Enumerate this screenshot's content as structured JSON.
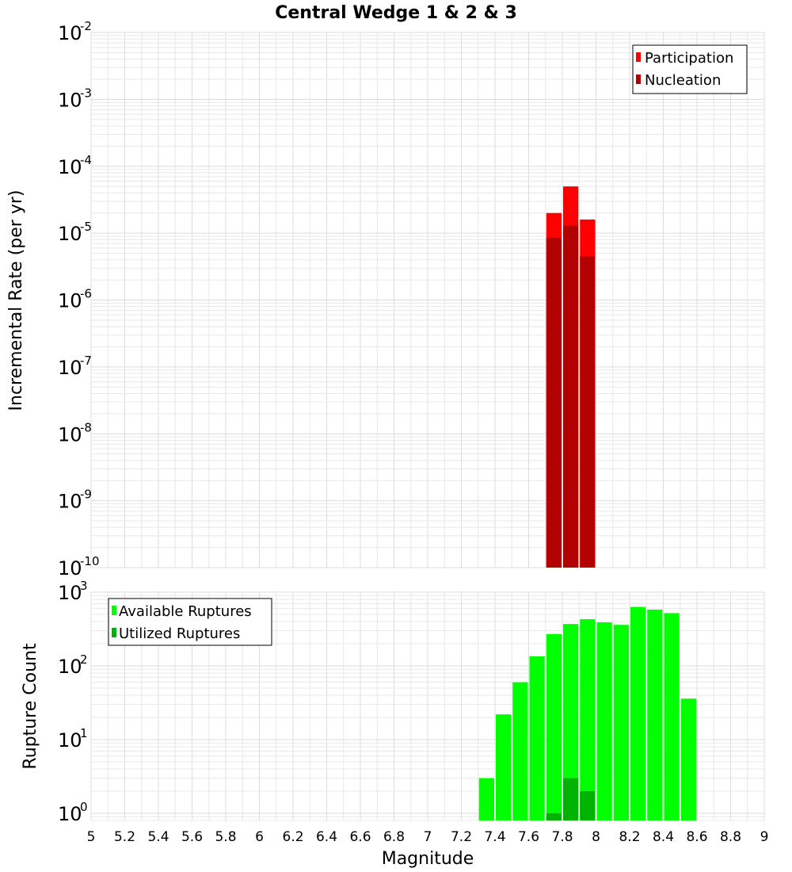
{
  "chart_data": [
    {
      "type": "bar",
      "panel": "top",
      "title": "Central Wedge 1 & 2 & 3",
      "xlabel": "Magnitude",
      "ylabel": "Incremental Rate (per yr)",
      "yscale": "log",
      "ylim": [
        1e-10,
        0.01
      ],
      "xlim": [
        5,
        9
      ],
      "y_tick_base": "10",
      "y_tick_exponents": [
        "-10",
        "-9",
        "-8",
        "-7",
        "-6",
        "-5",
        "-4",
        "-3",
        "-2"
      ],
      "bin_width": 0.1,
      "series": [
        {
          "name": "Participation",
          "color": "#ff0000",
          "x": [
            7.75,
            7.85,
            7.95
          ],
          "values": [
            2e-05,
            5e-05,
            1.6e-05
          ]
        },
        {
          "name": "Nucleation",
          "color": "#b30000",
          "x": [
            7.75,
            7.85,
            7.95
          ],
          "values": [
            8.5e-06,
            1.3e-05,
            4.5e-06
          ]
        }
      ],
      "legend": [
        "Participation",
        "Nucleation"
      ],
      "legend_position": "top-right",
      "grid": true
    },
    {
      "type": "bar",
      "panel": "bottom",
      "xlabel": "Magnitude",
      "ylabel": "Rupture Count",
      "yscale": "log",
      "ylim": [
        0.8,
        1000
      ],
      "xlim": [
        5,
        9
      ],
      "y_tick_base": "10",
      "y_tick_exponents": [
        "0",
        "1",
        "2",
        "3"
      ],
      "x_ticks": [
        "5",
        "5.2",
        "5.4",
        "5.6",
        "5.8",
        "6",
        "6.2",
        "6.4",
        "6.6",
        "6.8",
        "7",
        "7.2",
        "7.4",
        "7.6",
        "7.8",
        "8",
        "8.2",
        "8.4",
        "8.6",
        "8.8",
        "9"
      ],
      "bin_width": 0.1,
      "series": [
        {
          "name": "Available Ruptures",
          "color": "#00ff00",
          "x": [
            7.35,
            7.45,
            7.55,
            7.65,
            7.75,
            7.85,
            7.95,
            8.05,
            8.15,
            8.25,
            8.35,
            8.45,
            8.55
          ],
          "values": [
            3,
            22,
            60,
            135,
            270,
            370,
            430,
            390,
            360,
            630,
            580,
            520,
            36
          ]
        },
        {
          "name": "Utilized Ruptures",
          "color": "#00b300",
          "x": [
            7.75,
            7.85,
            7.95
          ],
          "values": [
            1,
            3,
            2
          ]
        }
      ],
      "legend": [
        "Available Ruptures",
        "Utilized Ruptures"
      ],
      "legend_position": "top-left",
      "grid": true
    }
  ]
}
